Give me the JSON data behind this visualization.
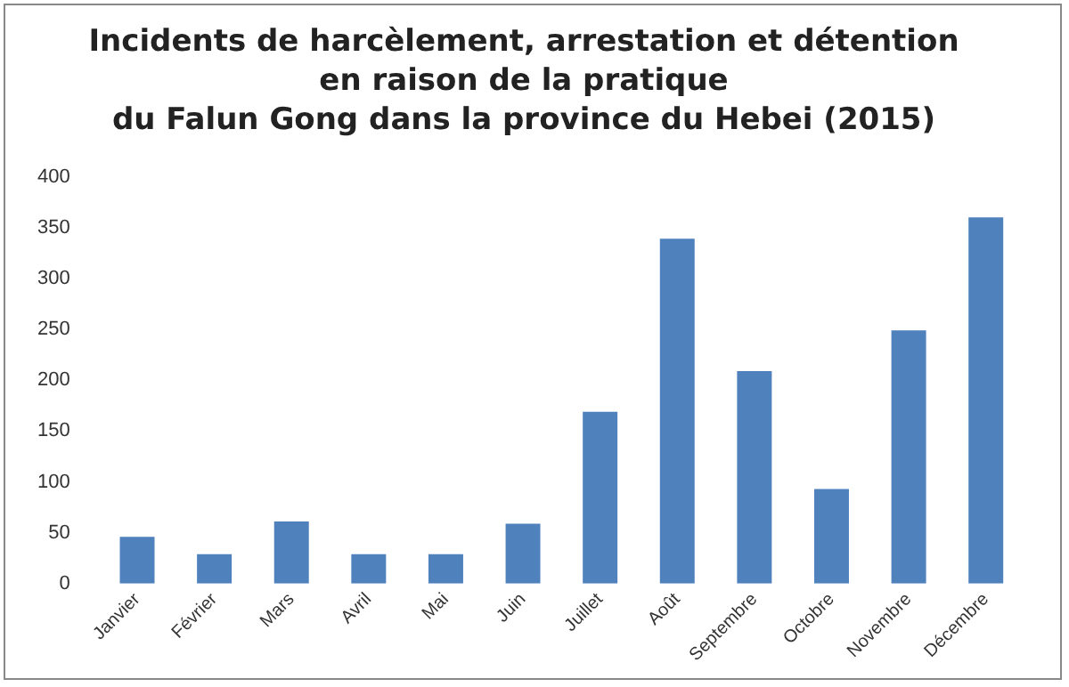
{
  "chart_data": {
    "type": "bar",
    "title": [
      "Incidents de harcèlement, arrestation et détention",
      "en raison de la pratique",
      "du Falun Gong dans la province du Hebei (2015)"
    ],
    "categories": [
      "Janvier",
      "Février",
      "Mars",
      "Avril",
      "Mai",
      "Juin",
      "Juillet",
      "Août",
      "Septembre",
      "Octobre",
      "Novembre",
      "Décembre"
    ],
    "values": [
      46,
      29,
      61,
      29,
      29,
      59,
      169,
      339,
      209,
      93,
      249,
      360
    ],
    "color": "#4f81bd",
    "ylim": [
      0,
      400
    ],
    "yticks": [
      0,
      50,
      100,
      150,
      200,
      250,
      300,
      350,
      400
    ],
    "grid": false,
    "legend": false
  }
}
